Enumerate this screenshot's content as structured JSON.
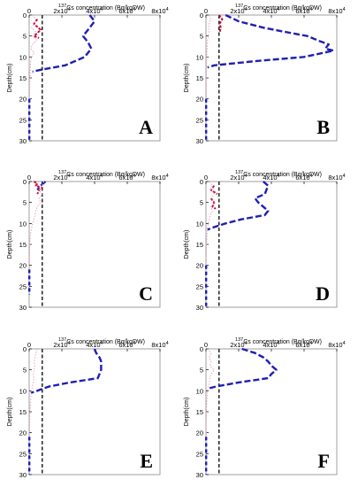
{
  "colors": {
    "blue": "#1f1fb5",
    "red": "#c8103c",
    "pink": "#e8a6c6",
    "black": "#000000"
  },
  "axes": {
    "xlabel_sup": "137",
    "xlabel_rest": "Cs concentration (Bq/kgDW)",
    "ylabel": "Depth(cm)",
    "xticks": [
      {
        "mant": "0",
        "exp": ""
      },
      {
        "mant": "2x10",
        "exp": "4"
      },
      {
        "mant": "4x10",
        "exp": "4"
      },
      {
        "mant": "6x10",
        "exp": "4"
      },
      {
        "mant": "8x10",
        "exp": "4"
      }
    ],
    "yticks": [
      "0",
      "5",
      "10",
      "15",
      "20",
      "25",
      "30"
    ]
  },
  "chart_data": [
    {
      "type": "line",
      "panel_label": "A",
      "xlim": [
        0,
        80000
      ],
      "ylim": [
        30,
        0
      ],
      "threshold_x": 8000,
      "series": [
        {
          "values": [
            [
              37000,
              0
            ],
            [
              40000,
              1.5
            ],
            [
              36000,
              3.5
            ],
            [
              33000,
              5
            ],
            [
              36000,
              6.5
            ],
            [
              38000,
              8
            ],
            [
              34000,
              10
            ],
            [
              22000,
              12
            ],
            [
              8000,
              13
            ],
            [
              2000,
              13.5
            ]
          ]
        },
        {
          "values": [
            [
              5000,
              1
            ],
            [
              3000,
              2
            ],
            [
              4000,
              2.5
            ],
            [
              7000,
              3.5
            ],
            [
              4500,
              4.5
            ],
            [
              3000,
              5
            ],
            [
              6000,
              5.5
            ]
          ]
        },
        {
          "values": [
            [
              1500,
              0
            ],
            [
              4000,
              1
            ],
            [
              3000,
              2
            ],
            [
              1500,
              3
            ],
            [
              4000,
              4
            ],
            [
              2000,
              5
            ],
            [
              4500,
              6
            ],
            [
              2000,
              7
            ],
            [
              1000,
              8
            ],
            [
              3000,
              9
            ],
            [
              1500,
              10
            ],
            [
              900,
              11
            ],
            [
              800,
              12
            ],
            [
              700,
              13
            ],
            [
              600,
              14
            ],
            [
              500,
              15
            ],
            [
              400,
              16
            ],
            [
              350,
              17
            ],
            [
              300,
              18
            ],
            [
              250,
              19
            ],
            [
              200,
              20
            ]
          ]
        },
        {
          "values": [
            [
              100,
              20
            ],
            [
              100,
              30
            ]
          ]
        }
      ]
    },
    {
      "type": "line",
      "panel_label": "B",
      "xlim": [
        0,
        80000
      ],
      "ylim": [
        30,
        0
      ],
      "threshold_x": 8000,
      "series": [
        {
          "values": [
            [
              12000,
              0
            ],
            [
              20000,
              1.5
            ],
            [
              35000,
              3
            ],
            [
              48000,
              4
            ],
            [
              62000,
              5
            ],
            [
              70000,
              6.3
            ],
            [
              75000,
              7
            ],
            [
              73000,
              8
            ],
            [
              78000,
              8.5
            ],
            [
              60000,
              10
            ],
            [
              30000,
              11
            ],
            [
              5000,
              12
            ],
            [
              1000,
              12.5
            ]
          ]
        },
        {
          "values": [
            [
              8000,
              0
            ],
            [
              10000,
              1
            ],
            [
              8500,
              2
            ],
            [
              9000,
              3
            ],
            [
              8500,
              4
            ]
          ]
        },
        {
          "values": [
            [
              2000,
              0
            ],
            [
              3000,
              1
            ],
            [
              2000,
              2
            ],
            [
              1500,
              3
            ],
            [
              2000,
              4
            ],
            [
              1500,
              5
            ],
            [
              1000,
              6
            ],
            [
              800,
              7
            ],
            [
              700,
              8
            ],
            [
              600,
              9
            ],
            [
              500,
              10
            ],
            [
              400,
              11
            ],
            [
              350,
              12
            ],
            [
              300,
              13
            ],
            [
              250,
              14
            ],
            [
              200,
              15
            ],
            [
              200,
              16
            ],
            [
              200,
              17
            ],
            [
              200,
              18
            ],
            [
              200,
              19
            ],
            [
              200,
              20
            ]
          ]
        },
        {
          "values": [
            [
              100,
              20
            ],
            [
              100,
              30
            ]
          ]
        }
      ]
    },
    {
      "type": "line",
      "panel_label": "C",
      "xlim": [
        0,
        80000
      ],
      "ylim": [
        30,
        0
      ],
      "threshold_x": 8000,
      "series": [
        {
          "values": [
            [
              10000,
              0
            ],
            [
              7000,
              1
            ],
            [
              5000,
              2
            ]
          ]
        },
        {
          "values": [
            [
              3000,
              0
            ],
            [
              5000,
              0.5
            ],
            [
              4000,
              1
            ],
            [
              8000,
              1.5
            ],
            [
              6000,
              2
            ],
            [
              5000,
              3
            ]
          ]
        },
        {
          "values": [
            [
              9000,
              0
            ],
            [
              8000,
              1
            ],
            [
              6000,
              2
            ],
            [
              8000,
              3
            ],
            [
              6000,
              4
            ],
            [
              7000,
              5
            ],
            [
              5000,
              6
            ],
            [
              4000,
              7
            ],
            [
              3500,
              8
            ],
            [
              3000,
              9
            ],
            [
              2000,
              10
            ],
            [
              1500,
              11
            ],
            [
              1000,
              12
            ],
            [
              700,
              13
            ],
            [
              500,
              14
            ],
            [
              400,
              15
            ],
            [
              300,
              16
            ],
            [
              250,
              17
            ],
            [
              200,
              18
            ],
            [
              200,
              19
            ],
            [
              150,
              20
            ],
            [
              150,
              21
            ]
          ]
        },
        {
          "values": [
            [
              100,
              21
            ],
            [
              100,
              27
            ]
          ]
        }
      ]
    },
    {
      "type": "line",
      "panel_label": "D",
      "xlim": [
        0,
        80000
      ],
      "ylim": [
        30,
        0
      ],
      "threshold_x": 8000,
      "series": [
        {
          "values": [
            [
              35000,
              0
            ],
            [
              38000,
              1
            ],
            [
              37000,
              2
            ],
            [
              36000,
              3
            ],
            [
              30000,
              4
            ],
            [
              32000,
              5
            ],
            [
              35000,
              6
            ],
            [
              38000,
              7
            ],
            [
              36000,
              8
            ],
            [
              22000,
              9
            ],
            [
              12000,
              10
            ],
            [
              4000,
              11
            ],
            [
              1000,
              11.5
            ]
          ]
        },
        {
          "values": [
            [
              5000,
              1
            ],
            [
              3000,
              2
            ],
            [
              7000,
              3
            ]
          ]
        },
        {
          "values": [
            [
              3000,
              4
            ],
            [
              5000,
              5
            ],
            [
              4000,
              6
            ],
            [
              6000,
              6.5
            ]
          ]
        },
        {
          "values": [
            [
              2000,
              0
            ],
            [
              4000,
              1
            ],
            [
              3000,
              2
            ],
            [
              5000,
              3
            ],
            [
              3000,
              4
            ],
            [
              5500,
              5
            ],
            [
              3000,
              6
            ],
            [
              4000,
              7
            ],
            [
              2500,
              8
            ],
            [
              2000,
              9
            ],
            [
              1500,
              10
            ],
            [
              1000,
              11
            ],
            [
              800,
              12
            ],
            [
              600,
              13
            ],
            [
              500,
              14
            ],
            [
              400,
              15
            ],
            [
              300,
              16
            ],
            [
              250,
              17
            ],
            [
              200,
              18
            ],
            [
              150,
              19
            ],
            [
              150,
              20
            ]
          ]
        },
        {
          "values": [
            [
              100,
              20
            ],
            [
              100,
              30
            ]
          ]
        }
      ]
    },
    {
      "type": "line",
      "panel_label": "E",
      "xlim": [
        0,
        80000
      ],
      "ylim": [
        30,
        0
      ],
      "threshold_x": 8000,
      "series": [
        {
          "values": [
            [
              40000,
              0
            ],
            [
              41000,
              1
            ],
            [
              43000,
              2
            ],
            [
              44000,
              3
            ],
            [
              44000,
              4
            ],
            [
              44000,
              5
            ],
            [
              43000,
              6
            ],
            [
              42000,
              7
            ],
            [
              25000,
              8
            ],
            [
              12000,
              9
            ],
            [
              5000,
              10
            ],
            [
              1000,
              10.5
            ]
          ]
        },
        {
          "values": [
            [
              5000,
              0
            ],
            [
              4000,
              1
            ],
            [
              3500,
              2
            ],
            [
              3000,
              3
            ],
            [
              3500,
              4
            ],
            [
              3000,
              5
            ],
            [
              2500,
              6
            ],
            [
              3000,
              7
            ],
            [
              2500,
              8
            ],
            [
              2000,
              9
            ],
            [
              1500,
              10
            ],
            [
              1200,
              11
            ],
            [
              1000,
              12
            ],
            [
              800,
              13
            ],
            [
              600,
              14
            ],
            [
              500,
              15
            ],
            [
              400,
              16
            ],
            [
              300,
              17
            ],
            [
              250,
              18
            ],
            [
              200,
              19
            ],
            [
              200,
              20
            ],
            [
              150,
              21
            ],
            [
              150,
              22
            ]
          ]
        },
        {
          "values": [
            [
              100,
              21
            ],
            [
              100,
              30
            ]
          ]
        }
      ]
    },
    {
      "type": "line",
      "panel_label": "F",
      "xlim": [
        0,
        80000
      ],
      "ylim": [
        30,
        0
      ],
      "threshold_x": 8000,
      "series": [
        {
          "values": [
            [
              22000,
              0
            ],
            [
              30000,
              1
            ],
            [
              35000,
              2
            ],
            [
              38000,
              3
            ],
            [
              40000,
              4
            ],
            [
              43000,
              5
            ],
            [
              40000,
              6
            ],
            [
              38000,
              7
            ],
            [
              20000,
              8
            ],
            [
              6000,
              9
            ],
            [
              1000,
              9.5
            ]
          ]
        },
        {
          "values": [
            [
              1000,
              0
            ],
            [
              3000,
              1
            ],
            [
              2000,
              2
            ],
            [
              3000,
              3
            ],
            [
              2500,
              4
            ],
            [
              5000,
              5
            ],
            [
              3000,
              6
            ],
            [
              2500,
              7
            ],
            [
              2000,
              8
            ],
            [
              1500,
              9
            ],
            [
              1000,
              10
            ],
            [
              800,
              11
            ],
            [
              600,
              12
            ],
            [
              500,
              13
            ],
            [
              400,
              14
            ],
            [
              300,
              15
            ],
            [
              250,
              16
            ],
            [
              200,
              17
            ],
            [
              150,
              18
            ],
            [
              150,
              19
            ],
            [
              150,
              20
            ],
            [
              150,
              21
            ]
          ]
        },
        {
          "values": [
            [
              100,
              21
            ],
            [
              100,
              30
            ]
          ]
        }
      ]
    }
  ]
}
